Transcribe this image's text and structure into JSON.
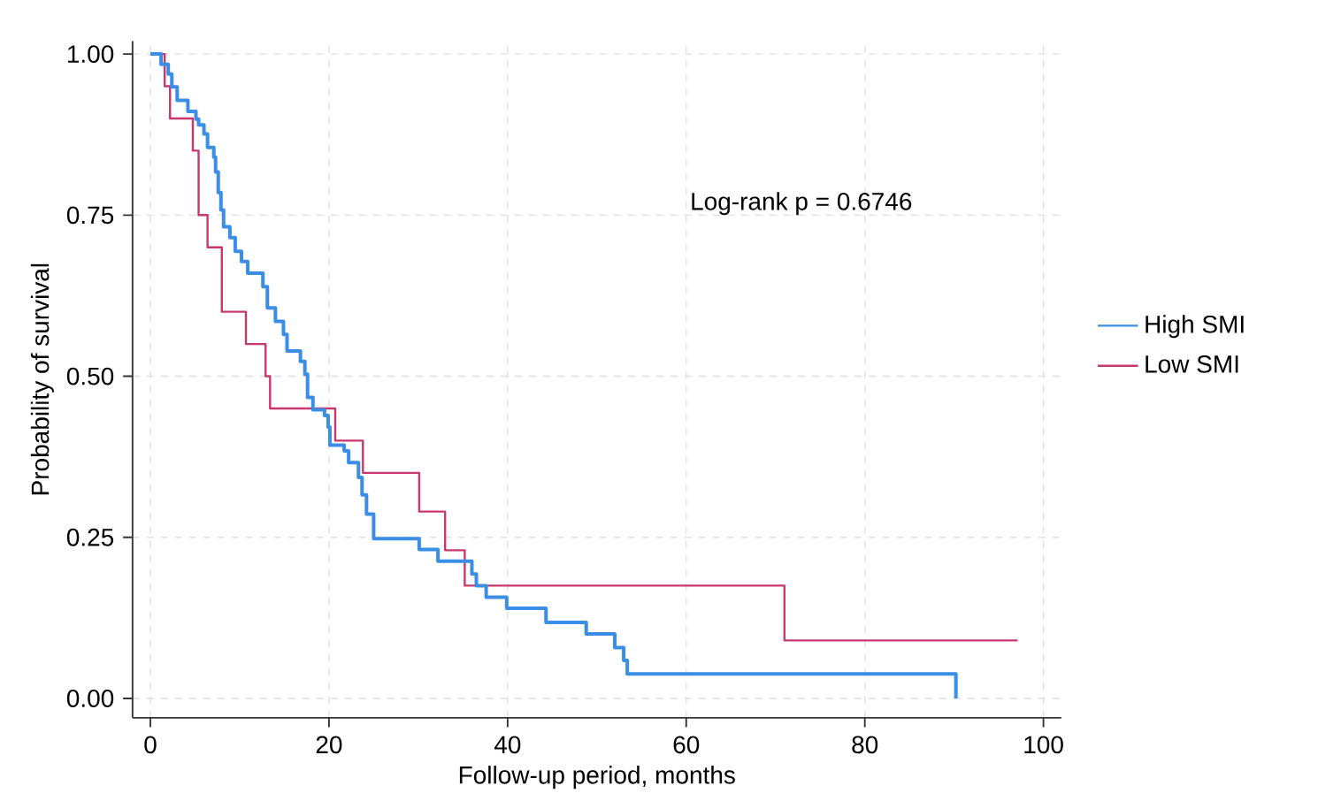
{
  "chart_data": {
    "type": "step",
    "xlabel": "Follow-up period, months",
    "ylabel": "Probability of survival",
    "annotations": [
      "Log-rank p = 0.6746"
    ],
    "xlim": [
      -2,
      102
    ],
    "ylim": [
      -0.03,
      1.02
    ],
    "xticks": [
      0,
      20,
      40,
      60,
      80,
      100
    ],
    "yticks": [
      {
        "value": 0,
        "label": "0.00"
      },
      {
        "value": 0.25,
        "label": "0.25"
      },
      {
        "value": 0.5,
        "label": "0.50"
      },
      {
        "value": 0.75,
        "label": "0.75"
      },
      {
        "value": 1,
        "label": "1.00"
      }
    ],
    "grid": true,
    "legend": "right",
    "line_style": "solid",
    "marker": "none",
    "series": [
      {
        "name": "High SMI",
        "color": "#3a8ee6",
        "x": [
          0,
          1.2,
          2.0,
          2.4,
          3.0,
          4.2,
          5.1,
          5.4,
          6.0,
          6.4,
          7.1,
          7.3,
          7.6,
          7.9,
          8.2,
          8.9,
          9.5,
          10.2,
          10.9,
          12.6,
          13.1,
          14.0,
          14.9,
          15.3,
          16.8,
          17.3,
          17.6,
          18.2,
          19.5,
          19.9,
          20.1,
          21.7,
          22.2,
          23.3,
          23.7,
          24.2,
          25.0,
          30.1,
          32.2,
          36.0,
          36.5,
          37.6,
          39.9,
          44.3,
          48.8,
          52.0,
          53.0,
          53.4,
          90.2
        ],
        "values": [
          1.0,
          0.984,
          0.969,
          0.949,
          0.928,
          0.911,
          0.899,
          0.89,
          0.876,
          0.855,
          0.84,
          0.817,
          0.785,
          0.758,
          0.732,
          0.715,
          0.694,
          0.678,
          0.66,
          0.639,
          0.606,
          0.585,
          0.565,
          0.539,
          0.523,
          0.503,
          0.467,
          0.448,
          0.439,
          0.421,
          0.393,
          0.384,
          0.366,
          0.343,
          0.316,
          0.286,
          0.248,
          0.231,
          0.213,
          0.193,
          0.175,
          0.157,
          0.14,
          0.118,
          0.1,
          0.079,
          0.059,
          0.038,
          0.0
        ]
      },
      {
        "name": "Low SMI",
        "color": "#c8386e",
        "x": [
          0,
          1.6,
          2.2,
          4.75,
          5.4,
          6.4,
          8.0,
          10.7,
          12.9,
          13.4,
          20.7,
          23.8,
          30.1,
          33.0,
          35.2,
          71.0,
          97.1
        ],
        "values": [
          1.0,
          0.95,
          0.9,
          0.85,
          0.75,
          0.7,
          0.6,
          0.55,
          0.5,
          0.45,
          0.4,
          0.35,
          0.29,
          0.23,
          0.175,
          0.09,
          0.09
        ]
      }
    ]
  }
}
